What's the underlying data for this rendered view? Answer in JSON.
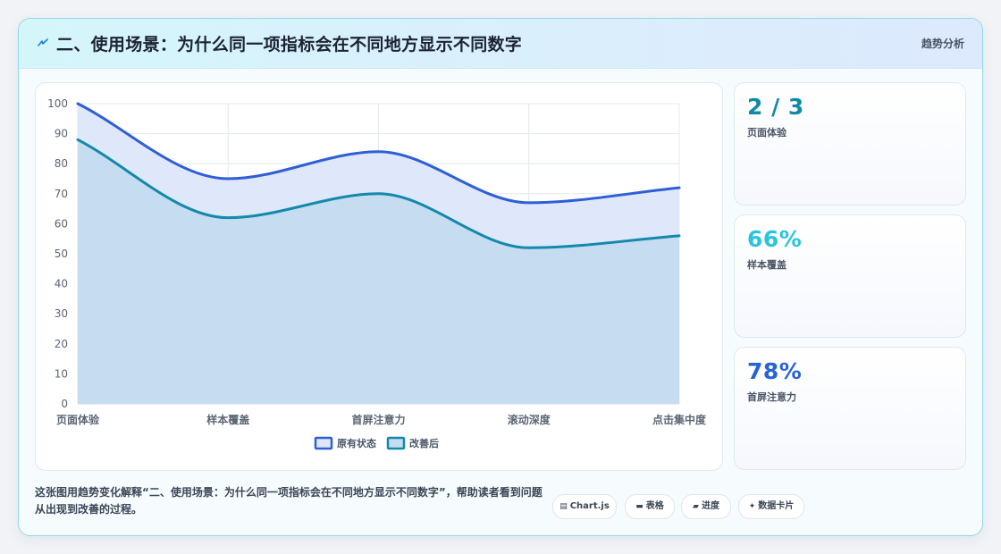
{
  "header": {
    "icon": "lightning-icon",
    "title": "二、使用场景：为什么同一项指标会在不同地方显示不同数字",
    "right_label": "趋势分析"
  },
  "stats": [
    {
      "value": "2 / 3",
      "label": "页面体验",
      "color": "#0f8ba8"
    },
    {
      "value": "66%",
      "label": "样本覆盖",
      "color": "#2bc4dd"
    },
    {
      "value": "78%",
      "label": "首屏注意力",
      "color": "#2763d8"
    }
  ],
  "footer": {
    "text": "这张图用趋势变化解释“二、使用场景：为什么同一项指标会在不同地方显示不同数字”，帮助读者看到问题从出现到改善的过程。"
  },
  "chips": [
    {
      "icon": "chart-icon",
      "glyph": "▤",
      "label": "Chart.js"
    },
    {
      "icon": "table-icon",
      "glyph": "▬",
      "label": "表格"
    },
    {
      "icon": "progress-icon",
      "glyph": "▰",
      "label": "进度"
    },
    {
      "icon": "sparkle-icon",
      "glyph": "✦",
      "label": "数据卡片"
    }
  ],
  "chart_data": {
    "type": "area",
    "categories": [
      "页面体验",
      "样本覆盖",
      "首屏注意力",
      "滚动深度",
      "点击集中度"
    ],
    "series": [
      {
        "name": "原有状态",
        "values": [
          100,
          75,
          84,
          67,
          72
        ],
        "color": "#2f5fd6",
        "fill": "#dfe8fb"
      },
      {
        "name": "改善后",
        "values": [
          88,
          62,
          70,
          52,
          56
        ],
        "color": "#1389ab",
        "fill": "#c5dcf1"
      }
    ],
    "ylim": [
      0,
      100
    ],
    "yticks": [
      0,
      10,
      20,
      30,
      40,
      50,
      60,
      70,
      80,
      90,
      100
    ],
    "grid": true,
    "legend": "bottom"
  }
}
